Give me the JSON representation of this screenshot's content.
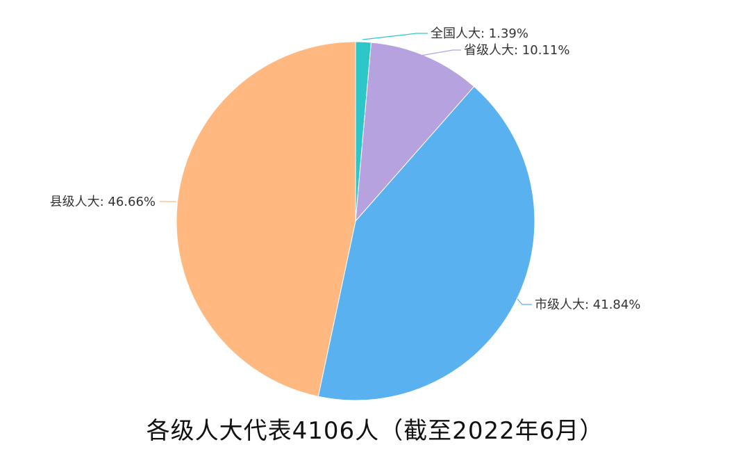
{
  "chart_data": {
    "type": "pie",
    "title": "各级人大代表4106人（截至2022年6月）",
    "slices": [
      {
        "name": "全国人大",
        "percent": 1.39,
        "label": "全国人大: 1.39%",
        "color": "#2ec7c9"
      },
      {
        "name": "省级人大",
        "percent": 10.11,
        "label": "省级人大: 10.11%",
        "color": "#b6a2de"
      },
      {
        "name": "市级人大",
        "percent": 41.84,
        "label": "市级人大: 41.84%",
        "color": "#5ab1ef"
      },
      {
        "name": "县级人大",
        "percent": 46.66,
        "label": "县级人大: 46.66%",
        "color": "#ffb980"
      }
    ],
    "start_angle": "12 o'clock",
    "direction": "clockwise",
    "legend": "none"
  }
}
